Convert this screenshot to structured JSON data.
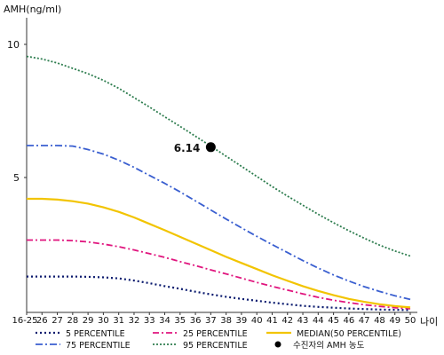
{
  "chart_data": {
    "type": "line",
    "ylabel": "AMH(ng/ml)",
    "xlabel": "나이",
    "yticks": [
      5,
      10
    ],
    "ylim": [
      0,
      11
    ],
    "categories": [
      "16-25",
      "26",
      "27",
      "28",
      "29",
      "30",
      "31",
      "32",
      "33",
      "34",
      "35",
      "36",
      "37",
      "38",
      "39",
      "40",
      "41",
      "42",
      "43",
      "44",
      "45",
      "46",
      "47",
      "48",
      "49",
      "50"
    ],
    "series": [
      {
        "name": "5 PERCENTILE",
        "color": "#0a1a6e",
        "dash": "2,3",
        "width": 2.2,
        "values": [
          1.28,
          1.28,
          1.28,
          1.28,
          1.27,
          1.25,
          1.21,
          1.13,
          1.03,
          0.92,
          0.82,
          0.71,
          0.61,
          0.52,
          0.44,
          0.37,
          0.3,
          0.24,
          0.18,
          0.14,
          0.11,
          0.08,
          0.06,
          0.04,
          0.03,
          0.02
        ]
      },
      {
        "name": "25 PERCENTILE",
        "color": "#e0157e",
        "dash": "7,3,2,3",
        "width": 1.8,
        "values": [
          2.65,
          2.65,
          2.65,
          2.63,
          2.58,
          2.5,
          2.4,
          2.28,
          2.14,
          2.0,
          1.84,
          1.69,
          1.53,
          1.38,
          1.22,
          1.06,
          0.91,
          0.77,
          0.63,
          0.5,
          0.39,
          0.3,
          0.22,
          0.16,
          0.11,
          0.07
        ]
      },
      {
        "name": "MEDIAN(50 PERCENTILE)",
        "color": "#f2c400",
        "dash": "",
        "width": 2.2,
        "values": [
          4.2,
          4.2,
          4.17,
          4.11,
          4.02,
          3.88,
          3.71,
          3.5,
          3.26,
          3.02,
          2.77,
          2.52,
          2.27,
          2.02,
          1.79,
          1.56,
          1.33,
          1.12,
          0.92,
          0.74,
          0.58,
          0.44,
          0.33,
          0.24,
          0.17,
          0.12
        ]
      },
      {
        "name": "75 PERCENTILE",
        "color": "#3a5fd0",
        "dash": "8,3,2,3",
        "width": 1.8,
        "values": [
          6.2,
          6.2,
          6.2,
          6.18,
          6.05,
          5.88,
          5.65,
          5.38,
          5.08,
          4.78,
          4.46,
          4.12,
          3.78,
          3.44,
          3.11,
          2.79,
          2.48,
          2.18,
          1.88,
          1.6,
          1.34,
          1.11,
          0.9,
          0.72,
          0.56,
          0.42
        ]
      },
      {
        "name": "95 PERCENTILE",
        "color": "#2e7d4f",
        "dash": "2,2",
        "width": 1.8,
        "values": [
          9.55,
          9.45,
          9.3,
          9.1,
          8.9,
          8.65,
          8.35,
          8.0,
          7.65,
          7.28,
          6.92,
          6.55,
          6.18,
          5.8,
          5.42,
          5.04,
          4.66,
          4.3,
          3.96,
          3.62,
          3.3,
          3.0,
          2.72,
          2.46,
          2.24,
          2.05
        ]
      }
    ],
    "marker": {
      "label": "6.14",
      "legend": "수진자의 AMH 농도",
      "x": "37",
      "y": 6.14,
      "color": "#000000"
    }
  }
}
